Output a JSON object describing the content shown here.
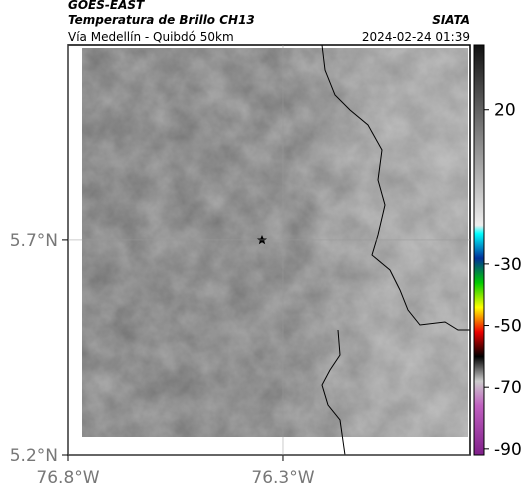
{
  "header": {
    "source": "GOES-EAST",
    "title": "Temperatura de Brillo CH13",
    "subtitle": "Vía Medellín - Quibdó 50km",
    "agency": "SIATA",
    "datetime": "2024-02-24 01:39"
  },
  "map": {
    "xlim": [
      -76.8,
      -75.865
    ],
    "ylim": [
      5.2,
      6.153
    ],
    "xticks": [
      {
        "value": -76.8,
        "label": "76.8°W"
      },
      {
        "value": -76.3,
        "label": "76.3°W"
      }
    ],
    "yticks": [
      {
        "value": 5.2,
        "label": "5.2°N"
      },
      {
        "value": 5.7,
        "label": "5.7°N"
      }
    ],
    "grid": true
  },
  "colorbar": {
    "lim": [
      -92,
      41
    ],
    "ticks": [
      20,
      -30,
      -50,
      -70,
      -90
    ]
  }
}
